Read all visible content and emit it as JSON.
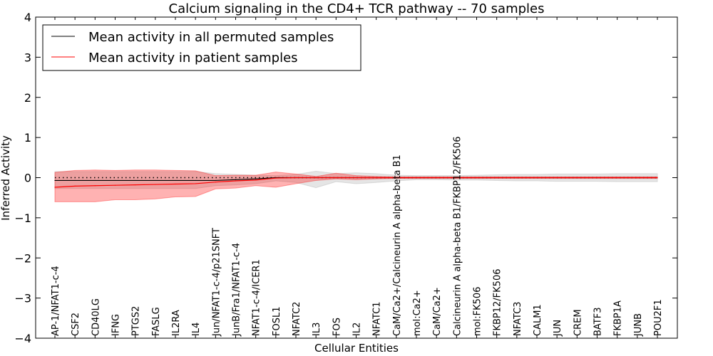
{
  "chart_data": {
    "type": "line",
    "title": "Calcium signaling in the CD4+ TCR pathway -- 70 samples",
    "xlabel": "Cellular Entities",
    "ylabel": "Inferred Activity",
    "ylim": [
      -4,
      4
    ],
    "yticks": [
      -4,
      -3,
      -2,
      -1,
      0,
      1,
      2,
      3,
      4
    ],
    "ytick_labels": [
      "−4",
      "−3",
      "−2",
      "−1",
      "0",
      "1",
      "2",
      "3",
      "4"
    ],
    "legend_placement": "top-left",
    "categories": [
      "AP-1/NFAT1-c-4",
      "CSF2",
      "CD40LG",
      "IFNG",
      "PTGS2",
      "FASLG",
      "IL2RA",
      "IL4",
      "Jun/NFAT1-c-4/p21SNFT",
      "JunB/Fra1/NFAT1-c-4",
      "NFAT1-c-4/ICER1",
      "FOSL1",
      "NFATC2",
      "IL3",
      "FOS",
      "IL2",
      "NFATC1",
      "CaM/Ca2+/Calcineurin A alpha-beta B1",
      "mol:Ca2+",
      "CaM/Ca2+",
      "Calcineurin A alpha-beta B1/FKBP12/FK506",
      "mol:FK506",
      "FKBP12/FK506",
      "NFATC3",
      "CALM1",
      "JUN",
      "CREM",
      "BATF3",
      "FKBP1A",
      "JUNB",
      "POU2F1"
    ],
    "series": [
      {
        "name": "Mean activity in all permuted samples",
        "color": "#000000",
        "values": [
          -0.07,
          -0.07,
          -0.07,
          -0.07,
          -0.07,
          -0.07,
          -0.07,
          -0.07,
          -0.07,
          -0.05,
          -0.03,
          0,
          0,
          0,
          0,
          0,
          0,
          0,
          0,
          0,
          0,
          0,
          0,
          0,
          0,
          0,
          0,
          0,
          0,
          0,
          0
        ],
        "upper": [
          0.15,
          0.15,
          0.15,
          0.15,
          0.15,
          0.15,
          0.15,
          0.15,
          0.1,
          0.08,
          0.06,
          0.05,
          0.08,
          0.16,
          0.1,
          0.12,
          0.1,
          0.06,
          0.05,
          0.05,
          0.05,
          0.06,
          0.07,
          0.08,
          0.08,
          0.09,
          0.09,
          0.09,
          0.1,
          0.1,
          0.1
        ],
        "lower": [
          -0.27,
          -0.27,
          -0.27,
          -0.27,
          -0.27,
          -0.27,
          -0.27,
          -0.27,
          -0.2,
          -0.18,
          -0.15,
          -0.08,
          -0.12,
          -0.25,
          -0.1,
          -0.15,
          -0.12,
          -0.08,
          -0.05,
          -0.05,
          -0.06,
          -0.06,
          -0.07,
          -0.08,
          -0.08,
          -0.09,
          -0.09,
          -0.09,
          -0.1,
          -0.1,
          -0.1
        ]
      },
      {
        "name": "Mean activity in patient samples",
        "color": "#ff0000",
        "values": [
          -0.24,
          -0.21,
          -0.2,
          -0.19,
          -0.18,
          -0.17,
          -0.16,
          -0.15,
          -0.11,
          -0.08,
          -0.06,
          -0.01,
          0,
          0,
          0,
          0,
          0,
          0,
          0,
          0,
          0,
          0,
          0,
          0,
          0,
          0,
          0,
          0,
          0,
          0,
          0
        ],
        "upper": [
          0.13,
          0.18,
          0.19,
          0.18,
          0.19,
          0.19,
          0.18,
          0.17,
          0.05,
          0.06,
          0.06,
          0.14,
          0.09,
          0.03,
          0.11,
          0.05,
          0.03,
          0.02,
          0.02,
          0.02,
          0.02,
          0.02,
          0.02,
          0.02,
          0.02,
          0.02,
          0.02,
          0.02,
          0.02,
          0.02,
          0.02
        ],
        "lower": [
          -0.6,
          -0.6,
          -0.6,
          -0.55,
          -0.55,
          -0.53,
          -0.48,
          -0.47,
          -0.28,
          -0.26,
          -0.2,
          -0.24,
          -0.15,
          -0.07,
          -0.03,
          -0.05,
          -0.03,
          -0.02,
          -0.02,
          -0.02,
          -0.02,
          -0.02,
          -0.02,
          -0.02,
          -0.02,
          -0.02,
          -0.02,
          -0.02,
          -0.02,
          -0.02,
          -0.02
        ]
      }
    ]
  }
}
